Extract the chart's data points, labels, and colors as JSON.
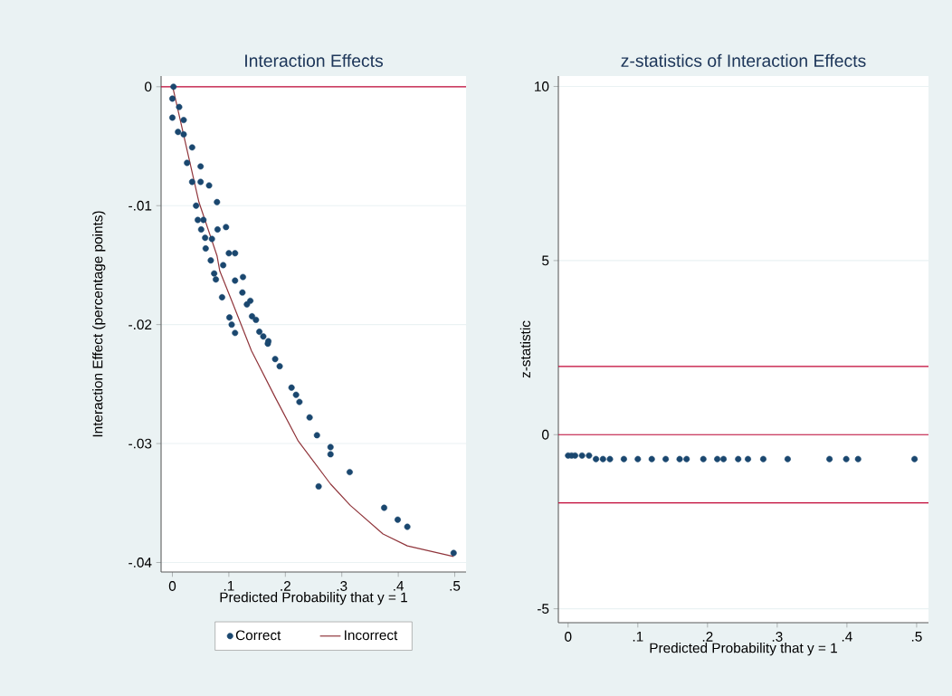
{
  "chart_data": [
    {
      "type": "scatter",
      "title": "Interaction Effects",
      "xlabel": "Predicted Probability that y = 1",
      "ylabel": "Interaction Effect (percentage points)",
      "xlim": [
        -0.02,
        0.52
      ],
      "ylim": [
        -0.0408,
        0.0009
      ],
      "xticks": [
        {
          "value": 0,
          "label": "0"
        },
        {
          "value": 0.1,
          "label": ".1"
        },
        {
          "value": 0.2,
          "label": ".2"
        },
        {
          "value": 0.3,
          "label": ".3"
        },
        {
          "value": 0.4,
          "label": ".4"
        },
        {
          "value": 0.5,
          "label": ".5"
        }
      ],
      "yticks": [
        {
          "value": -0.04,
          "label": "-.04"
        },
        {
          "value": -0.03,
          "label": "-.03"
        },
        {
          "value": -0.02,
          "label": "-.02"
        },
        {
          "value": -0.01,
          "label": "-.01"
        },
        {
          "value": 0,
          "label": "0"
        }
      ],
      "grid": "y",
      "legend": "bottom",
      "ref_lines": [
        {
          "axis": "y",
          "value": 0,
          "color": "#c10534"
        }
      ],
      "series": [
        {
          "name": "Correct",
          "marker": "circle",
          "color": "#1a476f",
          "x": [
            0.002,
            0.012,
            0.02,
            0.035,
            0.05,
            0.065,
            0.079,
            0.095,
            0.111,
            0.125,
            0.138,
            0.148,
            0.161,
            0.17,
            0,
            0,
            0.01,
            0.026,
            0.035,
            0.042,
            0.055,
            0.07,
            0.09,
            0.111,
            0.124,
            0.132,
            0.141,
            0.154,
            0.02,
            0.05,
            0.08,
            0.1,
            0.045,
            0.051,
            0.058,
            0.059,
            0.068,
            0.074,
            0.077,
            0.088,
            0.101,
            0.105,
            0.111,
            0.169,
            0.182,
            0.19,
            0.211,
            0.219,
            0.225,
            0.243,
            0.256,
            0.259,
            0.28,
            0.28,
            0.314,
            0.375,
            0.399,
            0.416,
            0.498
          ],
          "values": [
            0,
            -0.0017,
            -0.0028,
            -0.0051,
            -0.0067,
            -0.0083,
            -0.0097,
            -0.0118,
            -0.014,
            -0.016,
            -0.018,
            -0.0196,
            -0.021,
            -0.0214,
            -0.001,
            -0.0026,
            -0.0038,
            -0.0064,
            -0.008,
            -0.01,
            -0.0112,
            -0.0128,
            -0.015,
            -0.0163,
            -0.0173,
            -0.0183,
            -0.0193,
            -0.0206,
            -0.004,
            -0.008,
            -0.012,
            -0.014,
            -0.0112,
            -0.012,
            -0.0127,
            -0.0136,
            -0.0146,
            -0.0157,
            -0.0162,
            -0.0177,
            -0.0194,
            -0.02,
            -0.0207,
            -0.0216,
            -0.0229,
            -0.0235,
            -0.0253,
            -0.0259,
            -0.0265,
            -0.0278,
            -0.0293,
            -0.0336,
            -0.0303,
            -0.0309,
            -0.0324,
            -0.0354,
            -0.0364,
            -0.037,
            -0.0392
          ]
        },
        {
          "name": "Incorrect",
          "type": "line",
          "marker": "none",
          "color": "#90353b",
          "x": [
            0,
            0.002,
            0.047,
            0.079,
            0.084,
            0.106,
            0.14,
            0.183,
            0.223,
            0.28,
            0.315,
            0.373,
            0.416,
            0.498
          ],
          "values": [
            0,
            -0.0003,
            -0.0097,
            -0.0142,
            -0.0155,
            -0.0181,
            -0.0222,
            -0.0262,
            -0.0298,
            -0.0334,
            -0.0352,
            -0.0376,
            -0.0386,
            -0.0395
          ]
        }
      ]
    },
    {
      "type": "scatter",
      "title": "z-statistics of Interaction Effects",
      "xlabel": "Predicted Probability that y = 1",
      "ylabel": "z-statistic",
      "xlim": [
        -0.014,
        0.517
      ],
      "ylim": [
        -5.4,
        10.3
      ],
      "xticks": [
        {
          "value": 0,
          "label": "0"
        },
        {
          "value": 0.1,
          "label": ".1"
        },
        {
          "value": 0.2,
          "label": ".2"
        },
        {
          "value": 0.3,
          "label": ".3"
        },
        {
          "value": 0.4,
          "label": ".4"
        },
        {
          "value": 0.5,
          "label": ".5"
        }
      ],
      "yticks": [
        -5,
        0,
        5,
        10
      ],
      "grid": "y",
      "ref_lines": [
        {
          "axis": "y",
          "value": 1.96,
          "color": "#c10534"
        },
        {
          "axis": "y",
          "value": 0,
          "color": "#c10534"
        },
        {
          "axis": "y",
          "value": -1.96,
          "color": "#c10534"
        }
      ],
      "series": [
        {
          "marker": "circle",
          "color": "#1a476f",
          "x": [
            0,
            0.005,
            0.01,
            0.02,
            0.03,
            0.04,
            0.05,
            0.06,
            0.08,
            0.1,
            0.12,
            0.14,
            0.16,
            0.17,
            0.194,
            0.214,
            0.223,
            0.244,
            0.258,
            0.28,
            0.315,
            0.375,
            0.399,
            0.416,
            0.497
          ],
          "values": [
            -0.6,
            -0.6,
            -0.6,
            -0.6,
            -0.6,
            -0.7,
            -0.7,
            -0.7,
            -0.7,
            -0.7,
            -0.7,
            -0.7,
            -0.7,
            -0.7,
            -0.7,
            -0.7,
            -0.7,
            -0.7,
            -0.7,
            -0.7,
            -0.7,
            -0.7,
            -0.7,
            -0.7,
            -0.7
          ]
        }
      ]
    }
  ]
}
